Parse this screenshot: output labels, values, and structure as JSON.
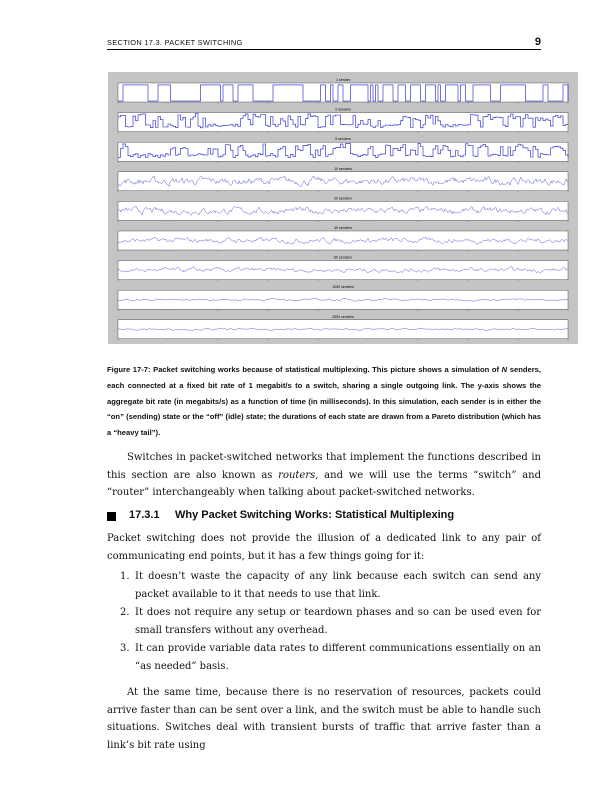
{
  "header": {
    "section": "SECTION 17.3.   PACKET SWITCHING",
    "page_number": "9"
  },
  "figure": {
    "panel_titles": [
      "1 sender",
      "2 senders",
      "5 senders",
      "10 senders",
      "20 senders",
      "40 senders",
      "60 senders",
      "1000 senders",
      "2000 senders"
    ],
    "trace_color": "#1a1acc",
    "panel_bg": "#ffffff",
    "figure_bg": "#c4c4c4"
  },
  "caption": {
    "label": "Figure 17-7:",
    "text_1": " Packet switching works because of statistical multiplexing. This picture shows a simulation of ",
    "var_n": "N",
    "text_2": " senders, each connected at a fixed bit rate of 1 megabit/s to a switch, sharing a single outgoing link. The y-axis shows the aggregate bit rate (in megabits/s) as a function of time (in milliseconds). In this simulation, each sender is in either the “on” (sending) state or the “off” (idle) state; the durations of each state are drawn from a Pareto distribution (which has a “heavy tail”)."
  },
  "intro_para": {
    "text_1": "Switches in packet-switched networks that implement the functions described in this section are also known as ",
    "routers": "routers",
    "text_2": ", and we will use the terms “switch” and “router” interchangeably when talking about packet-switched networks."
  },
  "subsection": {
    "number": "17.3.1",
    "title": "Why Packet Switching Works: Statistical Multiplexing"
  },
  "para_2": "Packet switching does not provide the illusion of a dedicated link to any pair of communicating end points, but it has a few things going for it:",
  "list": [
    {
      "n": "1.",
      "text": "It doesn’t waste the capacity of any link because each switch can send any packet available to it that needs to use that link."
    },
    {
      "n": "2.",
      "text": "It does not require any setup or teardown phases and so can be used even for small transfers without any overhead."
    },
    {
      "n": "3.",
      "text": "It can provide variable data rates to different communications essentially on an “as needed” basis."
    }
  ],
  "para_3": "At the same time, because there is no reservation of resources, packets could arrive faster than can be sent over a link, and the switch must be able to handle such situations. Switches deal with transient bursts of traffic that arrive faster than a link’s bit rate using"
}
